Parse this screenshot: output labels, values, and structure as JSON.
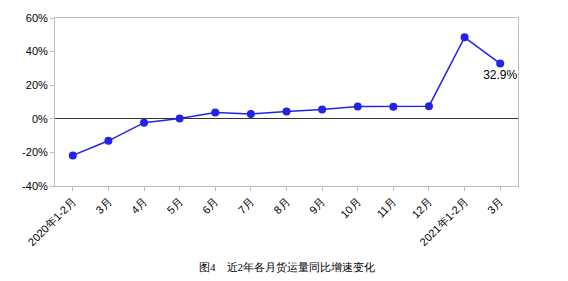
{
  "chart_data": {
    "type": "line",
    "title": "图4　近2年各月货运量同比增速变化",
    "categories": [
      "2020年1-2月",
      "3月",
      "4月",
      "5月",
      "6月",
      "7月",
      "8月",
      "9月",
      "10月",
      "11月",
      "12月",
      "2021年1-2月",
      "3月"
    ],
    "values": [
      -21.8,
      -13.1,
      -2.3,
      0.2,
      3.8,
      2.8,
      4.4,
      5.5,
      7.3,
      7.2,
      7.5,
      48.5,
      32.9
    ],
    "value_labels": [
      null,
      null,
      null,
      null,
      null,
      null,
      null,
      null,
      null,
      null,
      null,
      null,
      "32.9%"
    ],
    "data_labels": true,
    "color": "#2323e6",
    "marker": "circle",
    "ylim": [
      -40,
      60
    ],
    "yticks": [
      {
        "value": -40,
        "label": "-40%"
      },
      {
        "value": -20,
        "label": "-20%"
      },
      {
        "value": 0,
        "label": "0%"
      },
      {
        "value": 20,
        "label": "20%"
      },
      {
        "value": 40,
        "label": "40%"
      },
      {
        "value": 60,
        "label": "60%"
      }
    ],
    "grid": false
  }
}
